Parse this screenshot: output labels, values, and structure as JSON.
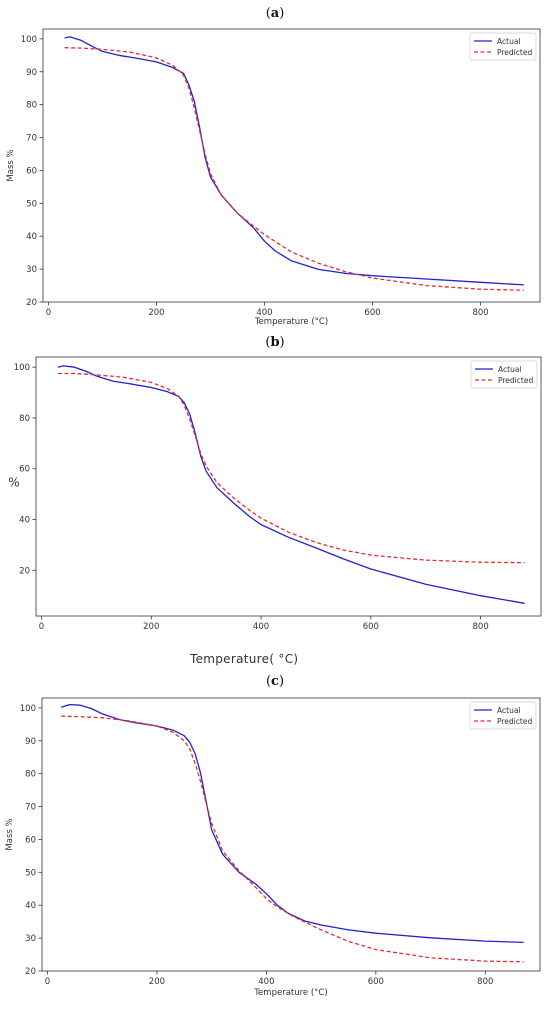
{
  "panels": [
    {
      "label_open": "(",
      "label_letter": "a",
      "label_close": ")"
    },
    {
      "label_open": "(",
      "label_letter": "b",
      "label_close": ")"
    },
    {
      "label_open": "(",
      "label_letter": "c",
      "label_close": ")"
    }
  ],
  "colors": {
    "actual": "#2222cc",
    "predicted": "#e03030"
  },
  "chart_data": [
    {
      "type": "line",
      "title": "",
      "xlabel": "Temperature (°C)",
      "ylabel": "Mass %",
      "xlim": [
        -10,
        910
      ],
      "ylim": [
        20,
        103
      ],
      "xticks": [
        0,
        200,
        400,
        600,
        800
      ],
      "yticks": [
        20,
        30,
        40,
        50,
        60,
        70,
        80,
        90,
        100
      ],
      "legend": "top-right",
      "series": [
        {
          "name": "Actual",
          "style": "solid",
          "x": [
            30,
            40,
            60,
            80,
            100,
            130,
            160,
            200,
            230,
            250,
            260,
            270,
            280,
            290,
            300,
            320,
            350,
            380,
            400,
            420,
            450,
            500,
            550,
            600,
            700,
            800,
            880
          ],
          "y": [
            100.3,
            100.6,
            99.6,
            97.8,
            96.2,
            95,
            94.2,
            93,
            91.3,
            89.5,
            86,
            81,
            73,
            64,
            58,
            52.5,
            47,
            42.5,
            38.5,
            35.5,
            32.5,
            29.9,
            28.7,
            28,
            27,
            26,
            25.2
          ]
        },
        {
          "name": "Predicted",
          "style": "dashed",
          "x": [
            30,
            60,
            100,
            150,
            200,
            230,
            250,
            260,
            270,
            280,
            290,
            300,
            320,
            350,
            380,
            400,
            450,
            500,
            550,
            600,
            700,
            800,
            880
          ],
          "y": [
            97.3,
            97.2,
            96.8,
            96,
            94.2,
            92,
            89,
            85,
            79,
            72,
            65,
            59,
            52.5,
            47,
            43,
            40.5,
            35.2,
            31.8,
            29.2,
            27.3,
            25,
            23.9,
            23.6
          ]
        }
      ]
    },
    {
      "type": "line",
      "title": "",
      "xlabel": "Temperature( °C)",
      "ylabel": "%",
      "xlim": [
        -10,
        910
      ],
      "ylim": [
        2,
        104
      ],
      "xticks": [
        0,
        200,
        400,
        600,
        800
      ],
      "yticks": [
        20,
        40,
        60,
        80,
        100
      ],
      "legend": "top-right",
      "series": [
        {
          "name": "Actual",
          "style": "solid",
          "x": [
            30,
            40,
            60,
            80,
            100,
            130,
            160,
            200,
            230,
            250,
            260,
            270,
            280,
            290,
            300,
            320,
            350,
            380,
            400,
            450,
            500,
            550,
            600,
            700,
            800,
            880
          ],
          "y": [
            100,
            100.5,
            100,
            98.5,
            96.5,
            94.5,
            93.5,
            92,
            90.3,
            88.5,
            86,
            81.5,
            74,
            65,
            59,
            52.5,
            46.5,
            41,
            38,
            33,
            28.8,
            24.5,
            20.5,
            14.5,
            10,
            7
          ]
        },
        {
          "name": "Predicted",
          "style": "dashed",
          "x": [
            30,
            60,
            100,
            150,
            200,
            230,
            250,
            260,
            270,
            280,
            290,
            300,
            320,
            350,
            380,
            400,
            450,
            500,
            550,
            600,
            700,
            800,
            880
          ],
          "y": [
            97.5,
            97.5,
            97,
            96,
            94,
            91.5,
            88.5,
            85,
            79.5,
            73,
            66,
            61,
            54.5,
            48.5,
            43.5,
            40.5,
            35,
            31,
            28,
            26,
            24,
            23.2,
            23
          ]
        }
      ]
    },
    {
      "type": "line",
      "title": "",
      "xlabel": "Temperature (°C)",
      "ylabel": "Mass %",
      "xlim": [
        -10,
        900
      ],
      "ylim": [
        20,
        103
      ],
      "xticks": [
        0,
        200,
        400,
        600,
        800
      ],
      "yticks": [
        20,
        30,
        40,
        50,
        60,
        70,
        80,
        90,
        100
      ],
      "legend": "top-right",
      "series": [
        {
          "name": "Actual",
          "style": "solid",
          "x": [
            25,
            40,
            60,
            80,
            100,
            130,
            160,
            200,
            230,
            250,
            260,
            270,
            280,
            290,
            300,
            320,
            350,
            380,
            400,
            420,
            440,
            470,
            500,
            550,
            600,
            700,
            800,
            870
          ],
          "y": [
            100.2,
            101,
            100.8,
            99.8,
            98.2,
            96.5,
            95.5,
            94.5,
            93.2,
            91.5,
            89.5,
            86,
            80,
            71.5,
            63,
            55.5,
            50,
            46.5,
            43.5,
            40,
            37.5,
            35.2,
            34,
            32.5,
            31.5,
            30.1,
            29.1,
            28.7
          ]
        },
        {
          "name": "Predicted",
          "style": "dashed",
          "x": [
            25,
            60,
            100,
            150,
            200,
            230,
            250,
            260,
            270,
            280,
            290,
            300,
            320,
            350,
            380,
            400,
            420,
            450,
            500,
            550,
            600,
            700,
            800,
            870
          ],
          "y": [
            97.5,
            97.3,
            97,
            96,
            94.5,
            92.5,
            90,
            87.5,
            83,
            77.5,
            71,
            65,
            56.5,
            50.5,
            45.5,
            42,
            39.5,
            36.5,
            32.5,
            29,
            26.5,
            24,
            23,
            22.8
          ]
        }
      ]
    }
  ]
}
